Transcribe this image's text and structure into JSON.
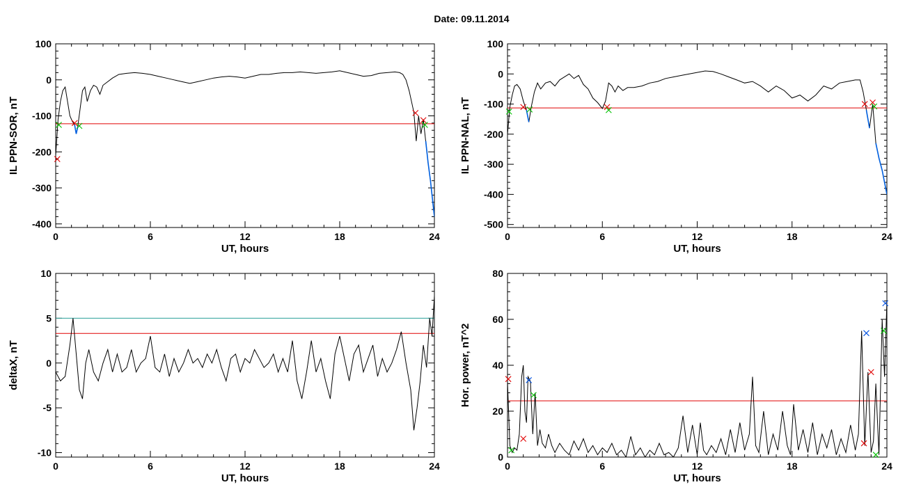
{
  "date_text": "Date:  09.11.2014",
  "colors": {
    "signal": "#000000",
    "threshold_red": "#e00000",
    "threshold_teal": "#2aa198",
    "marker_red": "#e00000",
    "marker_green": "#00c000",
    "marker_blue": "#0050e0",
    "highlight": "#0060e0"
  },
  "chart_data": [
    {
      "type": "line",
      "xlabel": "UT, hours",
      "ylabel": "IL PPN-SOR, nT",
      "xlim": [
        0,
        24
      ],
      "ylim": [
        -410,
        100
      ],
      "xticks": [
        0,
        6,
        12,
        18,
        24
      ],
      "yticks": [
        -400,
        -300,
        -200,
        -100,
        0,
        100
      ],
      "series": [
        {
          "x": [
            0,
            0.15,
            0.3,
            0.45,
            0.6,
            0.75,
            0.9,
            1.05,
            1.2,
            1.3,
            1.4,
            1.55,
            1.7,
            1.85,
            2.0,
            2.2,
            2.4,
            2.6,
            2.8,
            3.0,
            3.3,
            3.6,
            4.0,
            4.5,
            5.0,
            5.5,
            6.0,
            6.5,
            7.0,
            7.5,
            8.0,
            8.5,
            9.0,
            9.5,
            10.0,
            10.5,
            11.0,
            11.5,
            12.0,
            12.5,
            13.0,
            13.5,
            14.0,
            14.5,
            15.0,
            15.5,
            16.0,
            16.5,
            17.0,
            17.5,
            18.0,
            18.5,
            19.0,
            19.5,
            20.0,
            20.5,
            21.0,
            21.5,
            21.8,
            22.0,
            22.2,
            22.4,
            22.55,
            22.7,
            22.85,
            23.0,
            23.15,
            23.3,
            23.45,
            23.6,
            23.75,
            23.9,
            24.0
          ],
          "y": [
            -210,
            -110,
            -60,
            -30,
            -20,
            -60,
            -100,
            -115,
            -125,
            -150,
            -130,
            -80,
            -30,
            -20,
            -60,
            -30,
            -15,
            -20,
            -40,
            -15,
            -5,
            5,
            15,
            18,
            20,
            18,
            15,
            10,
            5,
            0,
            -5,
            -10,
            -5,
            0,
            5,
            8,
            10,
            8,
            5,
            10,
            15,
            15,
            18,
            20,
            20,
            22,
            20,
            18,
            20,
            22,
            25,
            20,
            15,
            10,
            12,
            18,
            20,
            22,
            20,
            15,
            0,
            -30,
            -60,
            -90,
            -170,
            -100,
            -150,
            -110,
            -170,
            -230,
            -280,
            -340,
            -380
          ]
        }
      ],
      "thresholds": [
        {
          "y": -122,
          "color": "red"
        }
      ],
      "markers": [
        {
          "x": 0.1,
          "y": -220,
          "color": "red"
        },
        {
          "x": 0.2,
          "y": -125,
          "color": "green"
        },
        {
          "x": 1.2,
          "y": -120,
          "color": "red"
        },
        {
          "x": 1.5,
          "y": -128,
          "color": "green"
        },
        {
          "x": 22.8,
          "y": -92,
          "color": "red"
        },
        {
          "x": 23.3,
          "y": -112,
          "color": "red"
        },
        {
          "x": 23.4,
          "y": -125,
          "color": "green"
        }
      ]
    },
    {
      "type": "line",
      "xlabel": "UT, hours",
      "ylabel": "IL PPN-NAL, nT",
      "xlim": [
        0,
        24
      ],
      "ylim": [
        -510,
        100
      ],
      "xticks": [
        0,
        6,
        12,
        18,
        24
      ],
      "yticks": [
        -500,
        -400,
        -300,
        -200,
        -100,
        0,
        100
      ],
      "series": [
        {
          "x": [
            0,
            0.15,
            0.3,
            0.45,
            0.6,
            0.8,
            1.0,
            1.2,
            1.35,
            1.5,
            1.7,
            1.9,
            2.1,
            2.4,
            2.7,
            3.0,
            3.3,
            3.6,
            3.9,
            4.2,
            4.5,
            4.8,
            5.1,
            5.4,
            5.7,
            6.0,
            6.2,
            6.4,
            6.6,
            6.8,
            7.0,
            7.3,
            7.6,
            8.0,
            8.5,
            9.0,
            9.5,
            10.0,
            10.5,
            11.0,
            11.5,
            12.0,
            12.5,
            13.0,
            13.5,
            14.0,
            14.5,
            15.0,
            15.5,
            16.0,
            16.5,
            17.0,
            17.5,
            18.0,
            18.5,
            19.0,
            19.5,
            20.0,
            20.5,
            21.0,
            21.5,
            22.0,
            22.3,
            22.5,
            22.7,
            22.9,
            23.1,
            23.3,
            23.5,
            23.7,
            23.85,
            24.0
          ],
          "y": [
            -200,
            -110,
            -70,
            -40,
            -35,
            -50,
            -90,
            -120,
            -160,
            -110,
            -60,
            -30,
            -50,
            -30,
            -25,
            -40,
            -20,
            -10,
            0,
            -15,
            -5,
            -35,
            -50,
            -80,
            -95,
            -115,
            -90,
            -30,
            -40,
            -60,
            -40,
            -55,
            -45,
            -45,
            -40,
            -30,
            -25,
            -15,
            -10,
            -5,
            0,
            5,
            10,
            8,
            0,
            -10,
            -20,
            -30,
            -25,
            -40,
            -60,
            -40,
            -55,
            -80,
            -70,
            -90,
            -70,
            -40,
            -50,
            -30,
            -25,
            -20,
            -20,
            -60,
            -120,
            -180,
            -100,
            -230,
            -280,
            -320,
            -360,
            -400
          ]
        }
      ],
      "thresholds": [
        {
          "y": -113,
          "color": "red"
        }
      ],
      "markers": [
        {
          "x": 0.1,
          "y": -125,
          "color": "green"
        },
        {
          "x": 1.0,
          "y": -110,
          "color": "red"
        },
        {
          "x": 1.4,
          "y": -118,
          "color": "green"
        },
        {
          "x": 6.3,
          "y": -110,
          "color": "red"
        },
        {
          "x": 6.4,
          "y": -120,
          "color": "green"
        },
        {
          "x": 22.6,
          "y": -100,
          "color": "red"
        },
        {
          "x": 23.1,
          "y": -95,
          "color": "red"
        },
        {
          "x": 23.2,
          "y": -108,
          "color": "green"
        }
      ]
    },
    {
      "type": "line",
      "xlabel": "UT, hours",
      "ylabel": "deltaX, nT",
      "xlim": [
        0,
        24
      ],
      "ylim": [
        -10.5,
        10
      ],
      "xticks": [
        0,
        6,
        12,
        18,
        24
      ],
      "yticks": [
        -10,
        -5,
        0,
        5,
        10
      ],
      "series": [
        {
          "x": [
            0,
            0.3,
            0.6,
            0.9,
            1.1,
            1.3,
            1.5,
            1.7,
            1.9,
            2.1,
            2.4,
            2.7,
            3.0,
            3.3,
            3.6,
            3.9,
            4.2,
            4.5,
            4.8,
            5.1,
            5.4,
            5.7,
            6.0,
            6.3,
            6.6,
            6.9,
            7.2,
            7.5,
            7.8,
            8.1,
            8.4,
            8.7,
            9.0,
            9.3,
            9.6,
            9.9,
            10.2,
            10.5,
            10.8,
            11.1,
            11.4,
            11.7,
            12.0,
            12.3,
            12.6,
            12.9,
            13.2,
            13.5,
            13.8,
            14.1,
            14.4,
            14.7,
            15.0,
            15.3,
            15.6,
            15.9,
            16.2,
            16.5,
            16.8,
            17.1,
            17.4,
            17.7,
            18.0,
            18.3,
            18.6,
            18.9,
            19.2,
            19.5,
            19.8,
            20.1,
            20.4,
            20.7,
            21.0,
            21.3,
            21.6,
            21.9,
            22.2,
            22.5,
            22.7,
            22.9,
            23.1,
            23.3,
            23.5,
            23.7,
            23.85,
            24.0
          ],
          "y": [
            -1,
            -2,
            -1.5,
            2,
            5,
            1,
            -3,
            -4,
            0,
            1.5,
            -1,
            -2,
            0,
            1.5,
            -1,
            1,
            -1,
            -0.5,
            1.5,
            -1,
            0,
            0.5,
            3,
            -0.5,
            -1,
            1,
            -1.5,
            0.5,
            -1,
            0,
            1.5,
            0,
            0.5,
            -0.5,
            1,
            0,
            1.5,
            -0.5,
            -2,
            0.5,
            1,
            -1,
            0.5,
            0,
            1.5,
            0.5,
            -0.5,
            0,
            1,
            -1,
            0.5,
            -1,
            2.5,
            -2,
            -4,
            -1,
            2.5,
            -1,
            0.5,
            -2,
            -4,
            1,
            3,
            0.5,
            -2,
            1,
            2,
            -1,
            0.5,
            2,
            -1.5,
            0.5,
            -1,
            0,
            1.5,
            3.5,
            0,
            -3,
            -7.5,
            -5,
            -2,
            2,
            -0.5,
            5,
            3,
            7.5
          ]
        }
      ],
      "thresholds": [
        {
          "y": 5,
          "color": "teal"
        },
        {
          "y": 3.3,
          "color": "red"
        }
      ],
      "markers": []
    },
    {
      "type": "line",
      "xlabel": "UT, hours",
      "ylabel": "Hor. power, nT^2",
      "xlim": [
        0,
        24
      ],
      "ylim": [
        0,
        80
      ],
      "xticks": [
        0,
        6,
        12,
        18,
        24
      ],
      "yticks": [
        0,
        20,
        40,
        60,
        80
      ],
      "series": [
        {
          "x": [
            0,
            0.15,
            0.3,
            0.45,
            0.6,
            0.75,
            0.9,
            1.0,
            1.1,
            1.2,
            1.3,
            1.45,
            1.6,
            1.75,
            1.9,
            2.05,
            2.2,
            2.4,
            2.6,
            2.8,
            3.0,
            3.3,
            3.6,
            3.9,
            4.2,
            4.5,
            4.8,
            5.1,
            5.4,
            5.7,
            6.0,
            6.3,
            6.6,
            6.9,
            7.2,
            7.5,
            7.8,
            8.1,
            8.4,
            8.7,
            9.0,
            9.3,
            9.6,
            9.9,
            10.2,
            10.5,
            10.8,
            11.1,
            11.4,
            11.7,
            12.0,
            12.2,
            12.4,
            12.6,
            12.9,
            13.2,
            13.5,
            13.8,
            14.1,
            14.4,
            14.7,
            15.0,
            15.3,
            15.5,
            15.7,
            15.9,
            16.2,
            16.5,
            16.8,
            17.1,
            17.4,
            17.7,
            17.9,
            18.1,
            18.4,
            18.7,
            19.0,
            19.3,
            19.6,
            19.9,
            20.2,
            20.5,
            20.8,
            21.1,
            21.4,
            21.7,
            22.0,
            22.2,
            22.4,
            22.6,
            22.8,
            23.0,
            23.15,
            23.3,
            23.5,
            23.7,
            23.85,
            24.0
          ],
          "y": [
            33,
            5,
            2,
            4,
            3,
            10,
            35,
            40,
            20,
            15,
            35,
            33,
            10,
            28,
            5,
            12,
            6,
            4,
            10,
            5,
            2,
            6,
            3,
            1,
            7,
            3,
            8,
            2,
            5,
            1,
            4,
            2,
            6,
            1,
            3,
            0,
            9,
            1,
            4,
            0,
            3,
            1,
            6,
            1,
            2,
            0,
            4,
            18,
            2,
            14,
            1,
            15,
            3,
            1,
            5,
            2,
            8,
            1,
            12,
            2,
            15,
            3,
            10,
            35,
            5,
            2,
            20,
            1,
            10,
            3,
            20,
            5,
            1,
            23,
            3,
            12,
            2,
            15,
            1,
            10,
            4,
            12,
            1,
            8,
            2,
            14,
            3,
            10,
            55,
            5,
            37,
            2,
            7,
            32,
            1,
            60,
            35,
            68
          ]
        }
      ],
      "thresholds": [
        {
          "y": 24.5,
          "color": "red"
        }
      ],
      "markers": [
        {
          "x": 0.05,
          "y": 34,
          "color": "red"
        },
        {
          "x": 0.25,
          "y": 3,
          "color": "green"
        },
        {
          "x": 1.0,
          "y": 8,
          "color": "red"
        },
        {
          "x": 1.35,
          "y": 33.5,
          "color": "blue"
        },
        {
          "x": 1.65,
          "y": 27,
          "color": "green"
        },
        {
          "x": 22.55,
          "y": 6,
          "color": "red"
        },
        {
          "x": 22.7,
          "y": 54,
          "color": "blue"
        },
        {
          "x": 23.0,
          "y": 37,
          "color": "red"
        },
        {
          "x": 23.3,
          "y": 1,
          "color": "green"
        },
        {
          "x": 23.8,
          "y": 55,
          "color": "green"
        },
        {
          "x": 23.9,
          "y": 67,
          "color": "blue"
        }
      ]
    }
  ]
}
